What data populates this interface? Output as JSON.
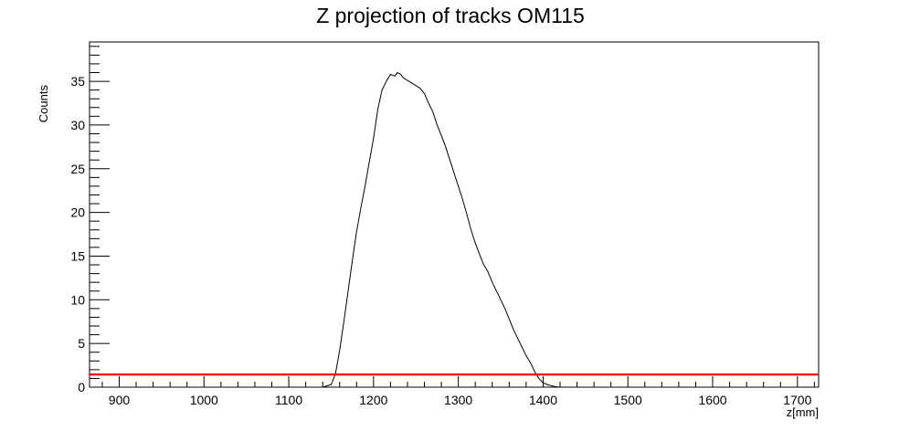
{
  "chart_data": {
    "type": "line",
    "title": "Z projection of tracks OM115",
    "xlabel": "z[mm]",
    "ylabel": "Counts",
    "xlim": [
      865,
      1725
    ],
    "ylim": [
      0,
      39.5
    ],
    "x_ticks": [
      900,
      1000,
      1100,
      1200,
      1300,
      1400,
      1500,
      1600,
      1700
    ],
    "y_ticks": [
      0,
      5,
      10,
      15,
      20,
      25,
      30,
      35
    ],
    "grid": false,
    "legend": "none",
    "series": [
      {
        "color": "#000000",
        "x": [
          1140,
          1150,
          1155,
          1160,
          1165,
          1170,
          1175,
          1180,
          1185,
          1190,
          1195,
          1200,
          1205,
          1210,
          1215,
          1220,
          1225,
          1228,
          1232,
          1235,
          1240,
          1245,
          1250,
          1255,
          1260,
          1265,
          1270,
          1275,
          1280,
          1285,
          1290,
          1295,
          1300,
          1305,
          1310,
          1315,
          1320,
          1325,
          1330,
          1335,
          1340,
          1345,
          1350,
          1355,
          1360,
          1365,
          1370,
          1375,
          1380,
          1385,
          1390,
          1395,
          1400,
          1405,
          1410,
          1415,
          1420,
          1425,
          1430,
          1435
        ],
        "y": [
          0,
          0.3,
          1.5,
          4.2,
          7.5,
          11,
          14.5,
          17.8,
          20.5,
          23,
          25.8,
          28.5,
          31.8,
          34,
          35,
          35.8,
          35.6,
          36,
          35.8,
          35.4,
          35.1,
          34.8,
          34.5,
          34.2,
          33.6,
          32.5,
          31.5,
          30,
          28.8,
          27.5,
          26,
          24.5,
          23,
          21.5,
          19.8,
          18,
          16.5,
          15.2,
          14,
          13.2,
          12,
          11,
          10,
          9,
          7.8,
          6.6,
          5.6,
          4.6,
          3.6,
          2.8,
          1.8,
          1,
          0.5,
          0.3,
          0.15,
          0.05,
          0,
          0,
          0,
          0
        ]
      },
      {
        "color": "#ff0000",
        "x": [
          865,
          1725
        ],
        "y": [
          1.45,
          1.45
        ]
      }
    ]
  }
}
